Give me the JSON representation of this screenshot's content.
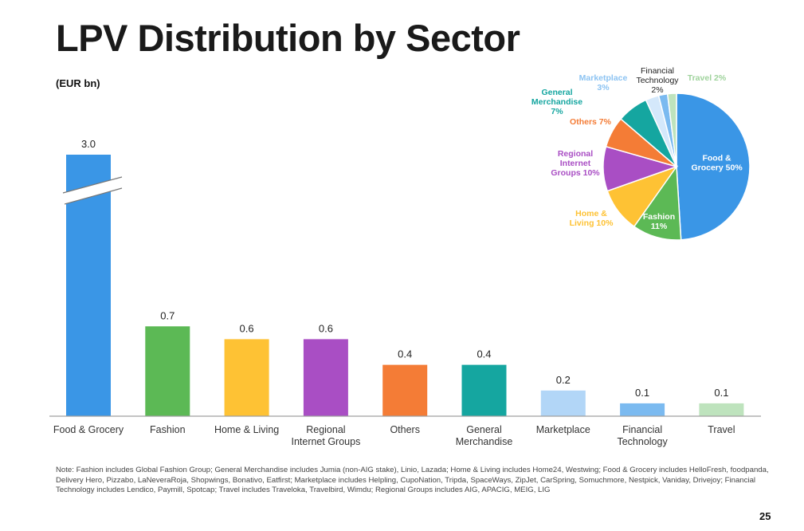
{
  "page": {
    "title": "LPV Distribution by Sector",
    "unit_label": "(EUR bn)",
    "note": "Note: Fashion includes Global Fashion Group; General Merchandise includes Jumia (non-AIG stake), Linio, Lazada; Home & Living includes Home24, Westwing; Food & Grocery includes HelloFresh, foodpanda, Delivery Hero, Pizzabo, LaNeveraRoja, Shopwings, Bonativo, Eatfirst; Marketplace includes Helpling, CupoNation, Tripda, SpaceWays, ZipJet, CarSpring, Somuchmore, Nestpick, Vaniday, Drivejoy; Financial Technology includes Lendico, Paymill, Spotcap; Travel includes Traveloka, Travelbird, Wimdu; Regional Groups includes AIG, APACIG, MEIG, LIG",
    "page_number": "25"
  },
  "chart_data": [
    {
      "type": "bar",
      "title": "LPV Distribution by Sector",
      "ylabel": "(EUR bn)",
      "xlabel": "",
      "axis_break": true,
      "grid": false,
      "categories": [
        [
          "Food & Grocery"
        ],
        [
          "Fashion"
        ],
        [
          "Home & Living"
        ],
        [
          "Regional",
          "Internet Groups"
        ],
        [
          "Others"
        ],
        [
          "General",
          "Merchandise"
        ],
        [
          "Marketplace"
        ],
        [
          "Financial",
          "Technology"
        ],
        [
          "Travel"
        ]
      ],
      "values": [
        3.0,
        0.7,
        0.6,
        0.6,
        0.4,
        0.4,
        0.2,
        0.1,
        0.1
      ],
      "data_labels": [
        "3.0",
        "0.7",
        "0.6",
        "0.6",
        "0.4",
        "0.4",
        "0.2",
        "0.1",
        "0.1"
      ],
      "colors": [
        "#3a96e6",
        "#5cb955",
        "#fec234",
        "#a94ec4",
        "#f47c36",
        "#15a6a0",
        "#b2d6f7",
        "#7bbaf0",
        "#bee3bd"
      ]
    },
    {
      "type": "pie",
      "start": "12 o'clock, clockwise",
      "slices": [
        {
          "name": "Food & Grocery",
          "value": 50,
          "label": [
            "Food &",
            "Grocery 50%"
          ],
          "color": "#3a96e6",
          "label_color": "#ffffff",
          "inside": true
        },
        {
          "name": "Fashion",
          "value": 11,
          "label": [
            "Fashion",
            "11%"
          ],
          "color": "#5cb955",
          "label_color": "#ffffff",
          "inside": true
        },
        {
          "name": "Home & Living",
          "value": 10,
          "label": [
            "Home &",
            "Living 10%"
          ],
          "color": "#fec234",
          "label_color": "#fec234",
          "inside": false
        },
        {
          "name": "Regional Internet Groups",
          "value": 10,
          "label": [
            "Regional",
            "Internet",
            "Groups 10%"
          ],
          "color": "#a94ec4",
          "label_color": "#a94ec4",
          "inside": false
        },
        {
          "name": "Others",
          "value": 7,
          "label": [
            "Others 7%"
          ],
          "color": "#f47c36",
          "label_color": "#f47c36",
          "inside": false
        },
        {
          "name": "General Merchandise",
          "value": 7,
          "label": [
            "General",
            "Merchandise",
            "7%"
          ],
          "color": "#15a6a0",
          "label_color": "#15a6a0",
          "inside": false
        },
        {
          "name": "Marketplace",
          "value": 3,
          "label": [
            "Marketplace",
            "3%"
          ],
          "color": "#d4e8fb",
          "label_color": "#8cc3f2",
          "inside": false
        },
        {
          "name": "Financial Technology",
          "value": 2,
          "label": [
            "Financial",
            "Technology",
            "2%"
          ],
          "color": "#7bbaf0",
          "label_color": "#222222",
          "inside": false
        },
        {
          "name": "Travel",
          "value": 2,
          "label": [
            "Travel 2%"
          ],
          "color": "#bee3bd",
          "label_color": "#9fd39c",
          "inside": false
        }
      ]
    }
  ]
}
